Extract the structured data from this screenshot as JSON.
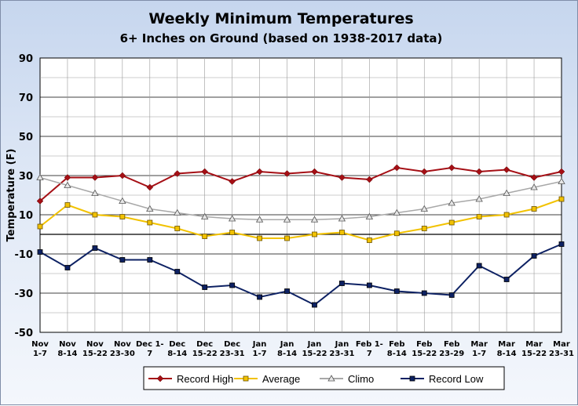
{
  "chart_data": {
    "type": "line",
    "title": "Weekly Minimum Temperatures",
    "subtitle": "6+ Inches on Ground (based on 1938-2017 data)",
    "ylabel": "Temperature (F)",
    "ylim": [
      -50,
      90
    ],
    "yticks": [
      -50,
      -30,
      -10,
      10,
      30,
      50,
      70,
      90
    ],
    "grid": true,
    "legend_position": "bottom",
    "categories": [
      [
        "Nov",
        "1-7"
      ],
      [
        "Nov",
        "8-14"
      ],
      [
        "Nov",
        "15-22"
      ],
      [
        "Nov",
        "23-30"
      ],
      [
        "Dec 1-",
        "7"
      ],
      [
        "Dec",
        "8-14"
      ],
      [
        "Dec",
        "15-22"
      ],
      [
        "Dec",
        "23-31"
      ],
      [
        "Jan",
        "1-7"
      ],
      [
        "Jan",
        "8-14"
      ],
      [
        "Jan",
        "15-22"
      ],
      [
        "Jan",
        "23-31"
      ],
      [
        "Feb 1-",
        "7"
      ],
      [
        "Feb",
        "8-14"
      ],
      [
        "Feb",
        "15-22"
      ],
      [
        "Feb",
        "23-29"
      ],
      [
        "Mar",
        "1-7"
      ],
      [
        "Mar",
        "8-14"
      ],
      [
        "Mar",
        "15-22"
      ],
      [
        "Mar",
        "23-31"
      ]
    ],
    "series": [
      {
        "name": "Record High",
        "color": "#a50f15",
        "marker": "diamond",
        "values": [
          17,
          29,
          29,
          30,
          24,
          31,
          32,
          27,
          32,
          31,
          32,
          29,
          28,
          34,
          32,
          34,
          32,
          33,
          29,
          32
        ]
      },
      {
        "name": "Average",
        "color": "#f2c200",
        "marker": "square",
        "values": [
          4,
          15,
          10,
          9,
          6,
          3,
          -1,
          1,
          -2,
          -2,
          0,
          1,
          -3,
          0.5,
          3,
          6,
          9,
          10,
          13,
          18
        ]
      },
      {
        "name": "Climo",
        "color": "#a8a8a8",
        "marker": "triangle",
        "values": [
          29,
          25,
          21,
          17,
          13,
          11,
          9,
          8,
          7.5,
          7.5,
          7.5,
          8,
          9,
          11,
          13,
          16,
          18,
          21,
          24,
          27
        ]
      },
      {
        "name": "Record Low",
        "color": "#0d2163",
        "marker": "square",
        "values": [
          -9,
          -17,
          -7,
          -13,
          -13,
          -19,
          -27,
          -26,
          -32,
          -29,
          -36,
          -25,
          -26,
          -29,
          -30,
          -31,
          -16,
          -23,
          -11,
          -5
        ]
      }
    ]
  }
}
